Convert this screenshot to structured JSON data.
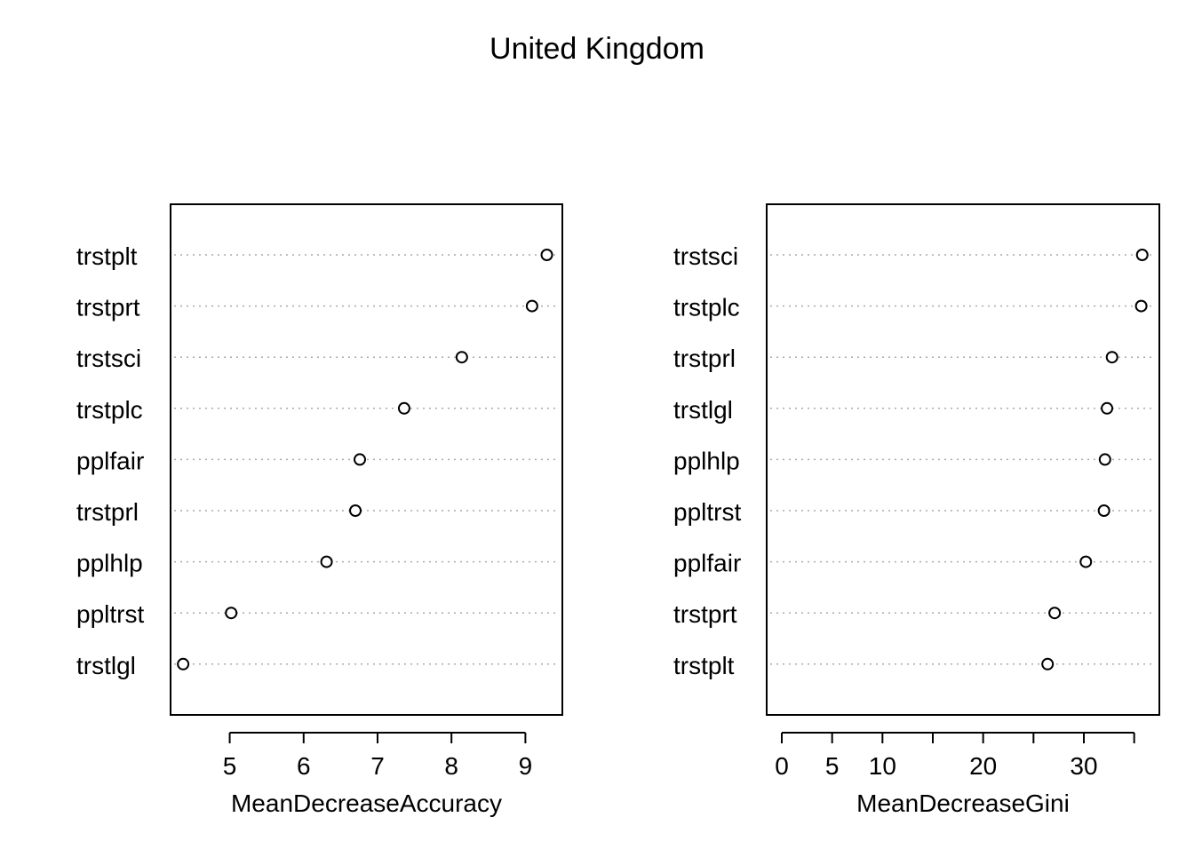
{
  "title": "United Kingdom",
  "chart_data": [
    {
      "type": "scatter",
      "style": "dotchart",
      "xlabel": "MeanDecreaseAccuracy",
      "ylabel": "",
      "xlim": [
        4.2,
        9.5
      ],
      "xticks": [
        5,
        6,
        7,
        8,
        9
      ],
      "grid": "dotted horizontal",
      "categories": [
        "trstplt",
        "trstprt",
        "trstsci",
        "trstplc",
        "pplfair",
        "trstprl",
        "pplhlp",
        "ppltrst",
        "trstlgl"
      ],
      "values": [
        9.29,
        9.09,
        8.14,
        7.36,
        6.76,
        6.7,
        6.31,
        5.02,
        4.37
      ]
    },
    {
      "type": "scatter",
      "style": "dotchart",
      "xlabel": "MeanDecreaseGini",
      "ylabel": "",
      "xlim": [
        -1.5,
        37.5
      ],
      "xticks": [
        0,
        5,
        10,
        15,
        20,
        25,
        30,
        35
      ],
      "xtick_labels": [
        "0",
        "5",
        "10",
        "",
        "20",
        "",
        "30",
        ""
      ],
      "grid": "dotted horizontal",
      "categories": [
        "trstsci",
        "trstplc",
        "trstprl",
        "trstlgl",
        "pplhlp",
        "ppltrst",
        "pplfair",
        "trstprt",
        "trstplt"
      ],
      "values": [
        35.8,
        35.7,
        32.8,
        32.3,
        32.1,
        32.0,
        30.2,
        27.1,
        26.4
      ]
    }
  ]
}
